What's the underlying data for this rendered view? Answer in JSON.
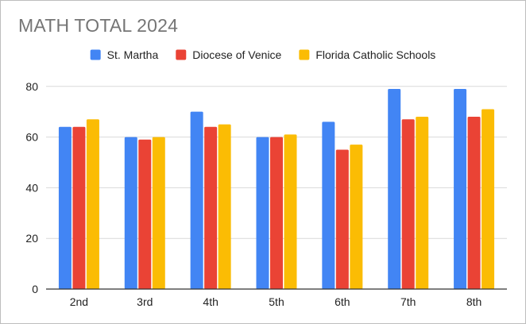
{
  "chart_data": {
    "type": "bar",
    "title": "MATH TOTAL 2024",
    "xlabel": "",
    "ylabel": "",
    "categories": [
      "2nd",
      "3rd",
      "4th",
      "5th",
      "6th",
      "7th",
      "8th"
    ],
    "series": [
      {
        "name": "St. Martha",
        "color": "#4285f4",
        "values": [
          64,
          60,
          70,
          60,
          66,
          79,
          79
        ]
      },
      {
        "name": "Diocese of Venice",
        "color": "#ea4335",
        "values": [
          64,
          59,
          64,
          60,
          55,
          67,
          68
        ]
      },
      {
        "name": "Florida Catholic Schools",
        "color": "#fbbc04",
        "values": [
          67,
          60,
          65,
          61,
          57,
          68,
          71
        ]
      }
    ],
    "ylim": [
      0,
      84
    ],
    "yticks": [
      0,
      20,
      40,
      60,
      80
    ],
    "grid": true,
    "legend_position": "top"
  }
}
